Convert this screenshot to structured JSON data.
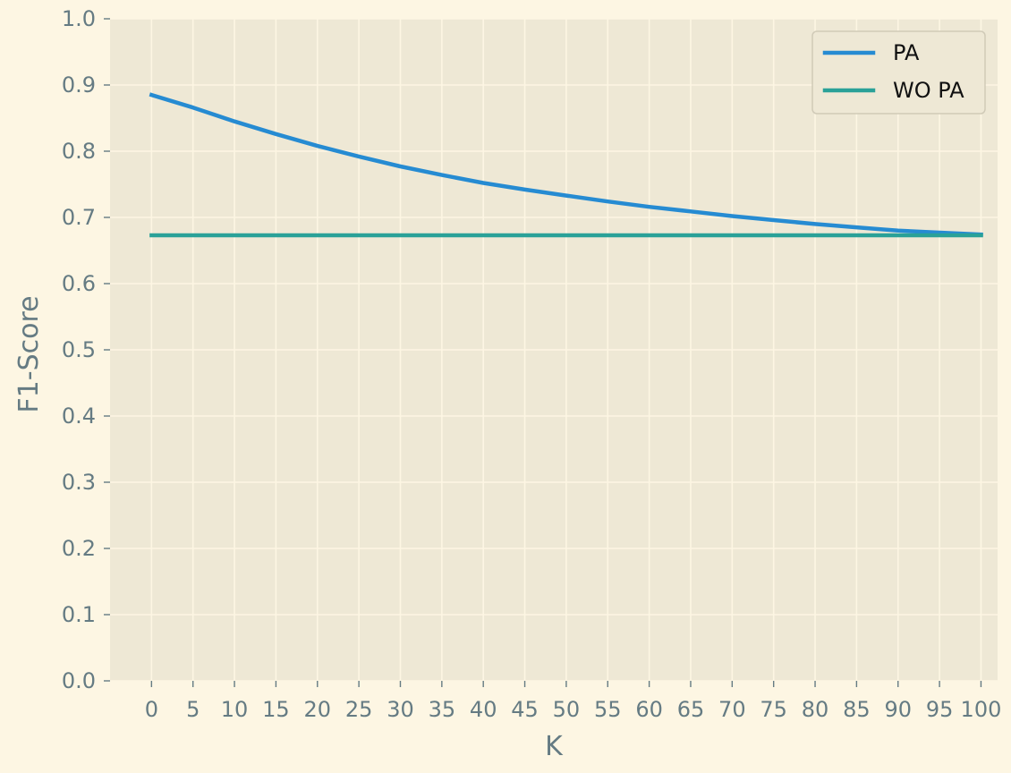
{
  "chart_data": {
    "type": "line",
    "title": "",
    "xlabel": "K",
    "ylabel": "F1-Score",
    "x": [
      0,
      5,
      10,
      15,
      20,
      25,
      30,
      35,
      40,
      45,
      50,
      55,
      60,
      65,
      70,
      75,
      80,
      85,
      90,
      95,
      100
    ],
    "xticks": [
      0,
      5,
      10,
      15,
      20,
      25,
      30,
      35,
      40,
      45,
      50,
      55,
      60,
      65,
      70,
      75,
      80,
      85,
      90,
      95,
      100
    ],
    "xtick_labels": [
      "0",
      "5",
      "10",
      "15",
      "20",
      "25",
      "30",
      "35",
      "40",
      "45",
      "50",
      "55",
      "60",
      "65",
      "70",
      "75",
      "80",
      "85",
      "90",
      "95",
      "100"
    ],
    "yticks": [
      0.0,
      0.1,
      0.2,
      0.3,
      0.4,
      0.5,
      0.6,
      0.7,
      0.8,
      0.9,
      1.0
    ],
    "ytick_labels": [
      "0.0",
      "0.1",
      "0.2",
      "0.3",
      "0.4",
      "0.5",
      "0.6",
      "0.7",
      "0.8",
      "0.9",
      "1.0"
    ],
    "xlim": [
      -5,
      102
    ],
    "ylim": [
      0.0,
      1.0
    ],
    "grid": true,
    "legend_position": "top-right",
    "series": [
      {
        "name": "PA",
        "color": "#268bd2",
        "values": [
          0.885,
          0.866,
          0.845,
          0.826,
          0.808,
          0.792,
          0.777,
          0.764,
          0.752,
          0.742,
          0.733,
          0.724,
          0.716,
          0.709,
          0.702,
          0.696,
          0.69,
          0.685,
          0.68,
          0.677,
          0.674
        ]
      },
      {
        "name": "WO PA",
        "color": "#2aa198",
        "values": [
          0.673,
          0.673,
          0.673,
          0.673,
          0.673,
          0.673,
          0.673,
          0.673,
          0.673,
          0.673,
          0.673,
          0.673,
          0.673,
          0.673,
          0.673,
          0.673,
          0.673,
          0.673,
          0.673,
          0.673,
          0.673
        ]
      }
    ]
  },
  "colors": {
    "figure_background": "#fdf6e3",
    "plot_background": "#eee8d5",
    "grid": "#fdf6e3",
    "text": "#657b83"
  }
}
